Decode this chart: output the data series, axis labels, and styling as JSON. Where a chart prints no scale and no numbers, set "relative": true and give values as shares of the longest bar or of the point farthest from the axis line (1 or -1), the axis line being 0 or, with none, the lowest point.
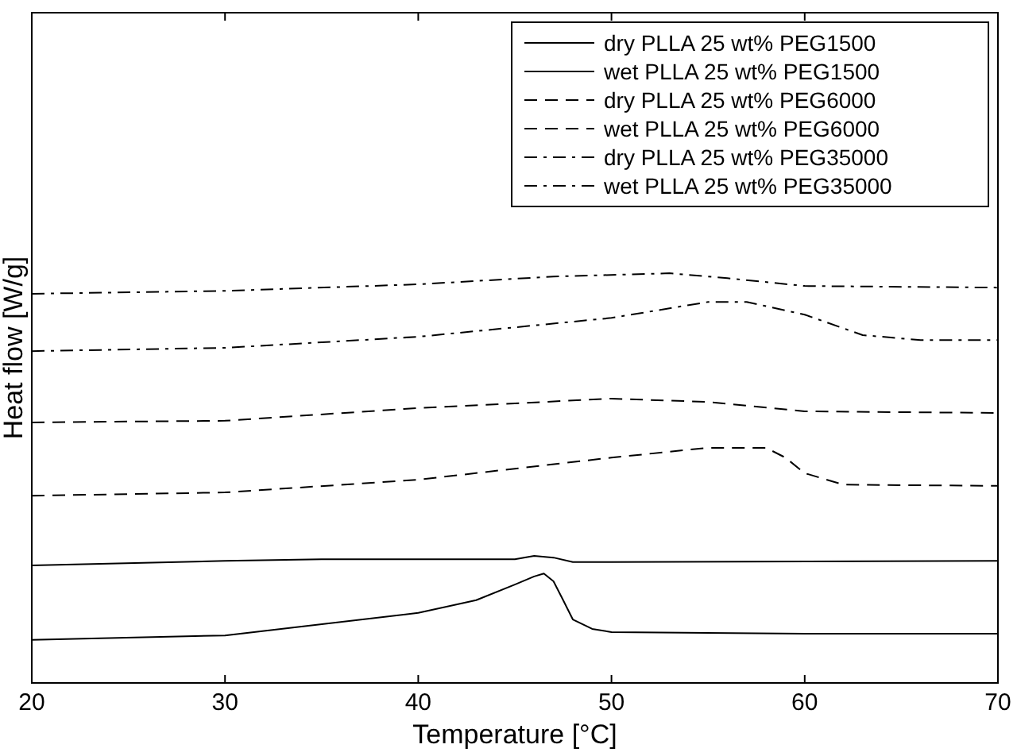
{
  "chart_data": {
    "type": "line",
    "xlabel": "Temperature [°C]",
    "ylabel": "Heat flow [W/g]",
    "relative": true,
    "xlim": [
      20,
      70
    ],
    "xticks": [
      20,
      30,
      40,
      50,
      60,
      70
    ],
    "tick_labels": "x",
    "grid": false,
    "legend": "top right",
    "marker": "none",
    "series": [
      {
        "name": "dry PLLA 25 wt% PEG1500",
        "color": "#000000",
        "line_style": "solid",
        "x": [
          20,
          30,
          40,
          43,
          45,
          46,
          46.5,
          47,
          47.5,
          48,
          49,
          50,
          60,
          70
        ],
        "values": [
          0.105,
          0.116,
          0.171,
          0.202,
          0.24,
          0.26,
          0.267,
          0.248,
          0.202,
          0.155,
          0.132,
          0.124,
          0.12,
          0.12
        ]
      },
      {
        "name": "wet PLLA 25 wt% PEG1500",
        "color": "#000000",
        "line_style": "solid",
        "x": [
          20,
          30,
          35,
          45,
          46,
          47,
          48,
          50,
          70
        ],
        "values": [
          0.287,
          0.298,
          0.302,
          0.302,
          0.31,
          0.306,
          0.295,
          0.295,
          0.298
        ]
      },
      {
        "name": "dry PLLA 25 wt% PEG6000",
        "color": "#000000",
        "line_style": "dashed",
        "x": [
          20,
          30,
          40,
          45,
          50,
          55,
          58,
          59,
          60,
          62,
          70
        ],
        "values": [
          0.457,
          0.465,
          0.496,
          0.523,
          0.55,
          0.574,
          0.574,
          0.55,
          0.512,
          0.484,
          0.481
        ]
      },
      {
        "name": "wet PLLA 25 wt% PEG6000",
        "color": "#000000",
        "line_style": "dashed",
        "x": [
          20,
          30,
          40,
          50,
          55,
          60,
          70
        ],
        "values": [
          0.636,
          0.64,
          0.671,
          0.694,
          0.686,
          0.663,
          0.659
        ]
      },
      {
        "name": "dry PLLA 25 wt% PEG35000",
        "color": "#000000",
        "line_style": "dashdot",
        "x": [
          20,
          30,
          40,
          50,
          55,
          57,
          60,
          63,
          66,
          70
        ],
        "values": [
          0.81,
          0.818,
          0.845,
          0.891,
          0.93,
          0.93,
          0.899,
          0.849,
          0.837,
          0.837
        ]
      },
      {
        "name": "wet PLLA 25 wt% PEG35000",
        "color": "#000000",
        "line_style": "dashdot",
        "x": [
          20,
          30,
          40,
          47,
          53,
          56,
          60,
          70
        ],
        "values": [
          0.95,
          0.957,
          0.973,
          0.992,
          1,
          0.988,
          0.969,
          0.965
        ]
      }
    ]
  }
}
